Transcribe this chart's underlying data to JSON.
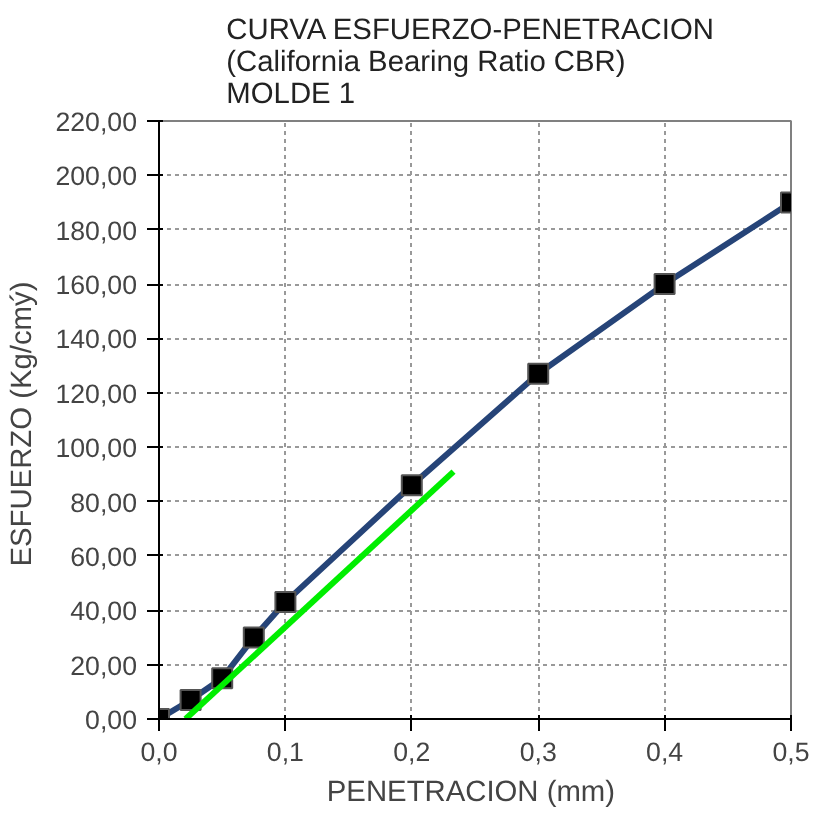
{
  "chart_data": {
    "type": "line",
    "title": "CURVA  ESFUERZO-PENETRACION\n(California Bearing Ratio CBR)\nMOLDE  1",
    "xlabel": "PENETRACION  (mm)",
    "ylabel": "ESFUERZO  (Kg/cmý)",
    "x": [
      0,
      0.025,
      0.05,
      0.075,
      0.1,
      0.2,
      0.3,
      0.4,
      0.5
    ],
    "series": [
      {
        "color": "#264478",
        "values": [
          0,
          7,
          15,
          30,
          43,
          86,
          127,
          160,
          190
        ]
      },
      {
        "color": "#00ee00",
        "x": [
          0.021,
          0.233
        ],
        "values": [
          0,
          91
        ],
        "marker": "none"
      }
    ],
    "marker": "square",
    "line_style": "solid",
    "grid": true,
    "xlim": [
      0,
      0.5
    ],
    "ylim": [
      0,
      220
    ],
    "xticks": [
      {
        "value": 0,
        "label": "0,0"
      },
      {
        "value": 0.1,
        "label": "0,1"
      },
      {
        "value": 0.2,
        "label": "0,2"
      },
      {
        "value": 0.3,
        "label": "0,3"
      },
      {
        "value": 0.4,
        "label": "0,4"
      },
      {
        "value": 0.5,
        "label": "0,5"
      }
    ],
    "yticks": [
      {
        "value": 0,
        "label": "0,00"
      },
      {
        "value": 20,
        "label": "20,00"
      },
      {
        "value": 40,
        "label": "40,00"
      },
      {
        "value": 60,
        "label": "60,00"
      },
      {
        "value": 80,
        "label": "80,00"
      },
      {
        "value": 100,
        "label": "100,00"
      },
      {
        "value": 120,
        "label": "120,00"
      },
      {
        "value": 140,
        "label": "140,00"
      },
      {
        "value": 160,
        "label": "160,00"
      },
      {
        "value": 180,
        "label": "180,00"
      },
      {
        "value": 200,
        "label": "200,00"
      },
      {
        "value": 220,
        "label": "220,00"
      }
    ]
  }
}
